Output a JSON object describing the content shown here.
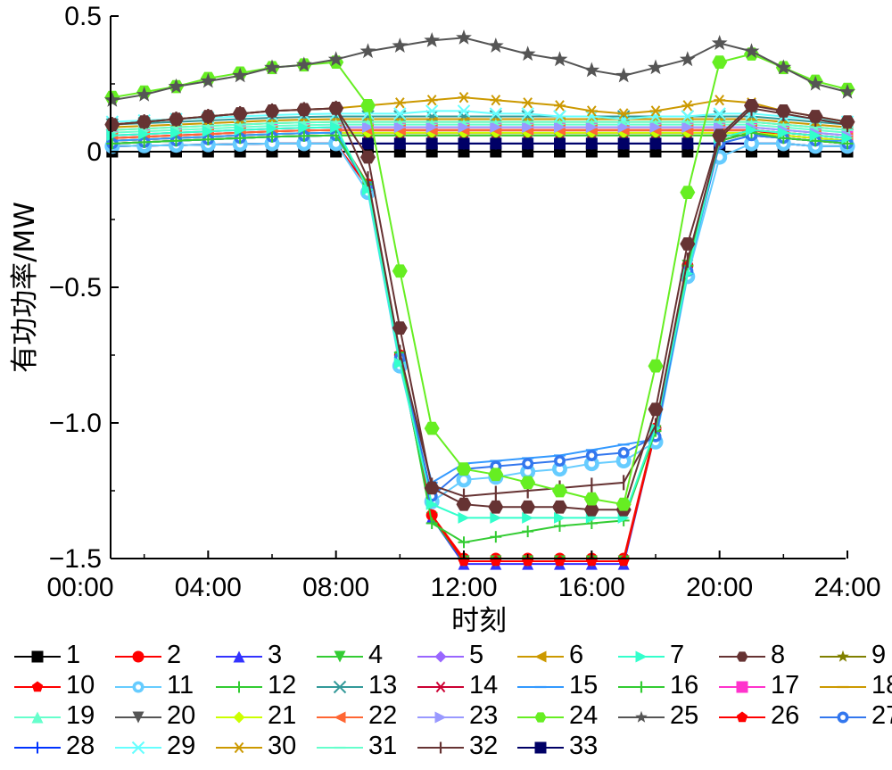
{
  "chart_data": {
    "type": "line",
    "title": "",
    "xlabel": "时刻",
    "ylabel": "有功功率/MW",
    "x_ticks": [
      "00:00",
      "04:00",
      "08:00",
      "12:00",
      "16:00",
      "20:00",
      "24:00"
    ],
    "y_ticks": [
      "0.5",
      "0",
      "−0.5",
      "−1.0",
      "−1.5"
    ],
    "xlim": [
      0,
      24
    ],
    "ylim": [
      -1.5,
      0.5
    ],
    "grid": false,
    "legend_position": "bottom",
    "x": [
      1,
      2,
      3,
      4,
      5,
      6,
      7,
      8,
      9,
      10,
      11,
      12,
      13,
      14,
      15,
      16,
      17,
      18,
      19,
      20,
      21,
      22,
      23,
      24
    ],
    "series": [
      {
        "name": "1",
        "color": "#000000",
        "marker": "square",
        "values": [
          0,
          0,
          0,
          0,
          0,
          0,
          0,
          0,
          0,
          0,
          0,
          0,
          0,
          0,
          0,
          0,
          0,
          0,
          0,
          0,
          0,
          0,
          0,
          0
        ]
      },
      {
        "name": "2",
        "color": "#ff0000",
        "marker": "circle",
        "values": [
          0.04,
          0.045,
          0.05,
          0.055,
          0.06,
          0.065,
          0.068,
          0.07,
          -0.12,
          -0.75,
          -1.34,
          -1.5,
          -1.5,
          -1.5,
          -1.5,
          -1.5,
          -1.5,
          -1.02,
          -0.42,
          0.05,
          0.08,
          0.06,
          0.05,
          0.04
        ]
      },
      {
        "name": "3",
        "color": "#3333ff",
        "marker": "triangle-up",
        "values": [
          0.03,
          0.035,
          0.04,
          0.045,
          0.05,
          0.055,
          0.058,
          0.06,
          -0.13,
          -0.76,
          -1.35,
          -1.52,
          -1.52,
          -1.52,
          -1.52,
          -1.52,
          -1.52,
          -1.03,
          -0.43,
          0.04,
          0.07,
          0.05,
          0.04,
          0.03
        ]
      },
      {
        "name": "4",
        "color": "#33cc33",
        "marker": "triangle-down",
        "values": [
          0.03,
          0.035,
          0.04,
          0.045,
          0.05,
          0.055,
          0.058,
          0.06,
          -0.13,
          -0.76,
          -1.35,
          -1.51,
          -1.51,
          -1.51,
          -1.51,
          -1.51,
          -1.51,
          -1.03,
          -0.42,
          0.04,
          0.07,
          0.05,
          0.04,
          0.03
        ]
      },
      {
        "name": "5",
        "color": "#9966ff",
        "marker": "diamond",
        "values": [
          0.05,
          0.055,
          0.06,
          0.065,
          0.07,
          0.075,
          0.078,
          0.08,
          0.08,
          0.08,
          0.08,
          0.08,
          0.08,
          0.08,
          0.08,
          0.08,
          0.08,
          0.08,
          0.08,
          0.08,
          0.08,
          0.07,
          0.06,
          0.05
        ]
      },
      {
        "name": "6",
        "color": "#cc9900",
        "marker": "triangle-left",
        "values": [
          0.08,
          0.085,
          0.09,
          0.095,
          0.1,
          0.105,
          0.108,
          0.11,
          0.11,
          0.11,
          0.11,
          0.11,
          0.11,
          0.11,
          0.11,
          0.11,
          0.11,
          0.11,
          0.11,
          0.11,
          0.11,
          0.1,
          0.09,
          0.08
        ]
      },
      {
        "name": "7",
        "color": "#33ffcc",
        "marker": "triangle-right",
        "values": [
          0.06,
          0.065,
          0.07,
          0.075,
          0.08,
          0.085,
          0.088,
          0.09,
          -0.14,
          -0.78,
          -1.3,
          -1.35,
          -1.35,
          -1.35,
          -1.35,
          -1.35,
          -1.35,
          -1.02,
          -0.45,
          0.05,
          0.08,
          0.07,
          0.06,
          0.05
        ]
      },
      {
        "name": "8",
        "color": "#663333",
        "marker": "hexagon",
        "values": [
          0.1,
          0.11,
          0.12,
          0.13,
          0.14,
          0.15,
          0.155,
          0.16,
          -0.02,
          -0.65,
          -1.24,
          -1.3,
          -1.31,
          -1.31,
          -1.31,
          -1.32,
          -1.32,
          -0.95,
          -0.34,
          0.06,
          0.17,
          0.15,
          0.13,
          0.11
        ]
      },
      {
        "name": "9",
        "color": "#808000",
        "marker": "star",
        "values": [
          0.03,
          0.035,
          0.04,
          0.045,
          0.05,
          0.055,
          0.058,
          0.06,
          0.06,
          0.06,
          0.06,
          0.06,
          0.06,
          0.06,
          0.06,
          0.06,
          0.06,
          0.06,
          0.06,
          0.06,
          0.06,
          0.05,
          0.04,
          0.03
        ]
      },
      {
        "name": "10",
        "color": "#ff0000",
        "marker": "pentagon",
        "values": [
          0.05,
          0.055,
          0.06,
          0.065,
          0.07,
          0.075,
          0.078,
          0.08,
          0.08,
          0.08,
          0.08,
          0.08,
          0.08,
          0.08,
          0.08,
          0.08,
          0.08,
          0.08,
          0.08,
          0.08,
          0.08,
          0.07,
          0.06,
          0.05
        ]
      },
      {
        "name": "11",
        "color": "#66ccff",
        "marker": "circle-dot",
        "values": [
          0.02,
          0.022,
          0.024,
          0.026,
          0.028,
          0.03,
          0.03,
          0.03,
          -0.15,
          -0.79,
          -1.29,
          -1.21,
          -1.2,
          -1.18,
          -1.17,
          -1.15,
          -1.14,
          -1.07,
          -0.46,
          -0.02,
          0.03,
          0.03,
          0.02,
          0.02
        ]
      },
      {
        "name": "12",
        "color": "#33cc33",
        "marker": "plus",
        "values": [
          0.03,
          0.035,
          0.04,
          0.045,
          0.05,
          0.055,
          0.058,
          0.06,
          -0.12,
          -0.74,
          -1.37,
          -1.44,
          -1.42,
          -1.4,
          -1.38,
          -1.37,
          -1.36,
          -1.03,
          -0.42,
          0.04,
          0.07,
          0.05,
          0.04,
          0.03
        ]
      },
      {
        "name": "13",
        "color": "#339999",
        "marker": "x",
        "values": [
          0.1,
          0.105,
          0.11,
          0.115,
          0.12,
          0.125,
          0.128,
          0.13,
          0.13,
          0.13,
          0.13,
          0.13,
          0.13,
          0.13,
          0.13,
          0.13,
          0.13,
          0.13,
          0.13,
          0.13,
          0.13,
          0.12,
          0.11,
          0.1
        ]
      },
      {
        "name": "14",
        "color": "#cc0033",
        "marker": "asterisk",
        "values": [
          0.04,
          0.045,
          0.05,
          0.055,
          0.06,
          0.065,
          0.068,
          0.07,
          0.07,
          0.07,
          0.07,
          0.07,
          0.07,
          0.07,
          0.07,
          0.07,
          0.07,
          0.07,
          0.07,
          0.07,
          0.07,
          0.06,
          0.05,
          0.04
        ]
      },
      {
        "name": "15",
        "color": "#3399ff",
        "marker": "hline",
        "values": [
          0.04,
          0.045,
          0.05,
          0.055,
          0.06,
          0.065,
          0.068,
          0.07,
          -0.13,
          -0.77,
          -1.22,
          -1.15,
          -1.14,
          -1.13,
          -1.12,
          -1.1,
          -1.08,
          -1.06,
          -0.45,
          0.03,
          0.06,
          0.05,
          0.04,
          0.04
        ]
      },
      {
        "name": "16",
        "color": "#33cc33",
        "marker": "vline",
        "values": [
          0.03,
          0.035,
          0.04,
          0.045,
          0.05,
          0.055,
          0.058,
          0.06,
          0.06,
          0.06,
          0.06,
          0.06,
          0.06,
          0.06,
          0.06,
          0.06,
          0.06,
          0.06,
          0.06,
          0.06,
          0.06,
          0.05,
          0.04,
          0.03
        ]
      },
      {
        "name": "17",
        "color": "#ff33cc",
        "marker": "square",
        "values": [
          0.06,
          0.065,
          0.07,
          0.075,
          0.08,
          0.085,
          0.088,
          0.09,
          0.09,
          0.09,
          0.09,
          0.09,
          0.09,
          0.09,
          0.09,
          0.09,
          0.09,
          0.09,
          0.09,
          0.09,
          0.09,
          0.08,
          0.07,
          0.06
        ]
      },
      {
        "name": "18",
        "color": "#cc9900",
        "marker": "hline",
        "values": [
          0.09,
          0.095,
          0.1,
          0.105,
          0.11,
          0.115,
          0.118,
          0.12,
          0.12,
          0.12,
          0.12,
          0.12,
          0.12,
          0.12,
          0.12,
          0.12,
          0.12,
          0.12,
          0.12,
          0.12,
          0.12,
          0.11,
          0.1,
          0.09
        ]
      },
      {
        "name": "19",
        "color": "#66ffcc",
        "marker": "triangle-up",
        "values": [
          0.07,
          0.075,
          0.08,
          0.085,
          0.09,
          0.095,
          0.098,
          0.1,
          0.1,
          0.1,
          0.1,
          0.1,
          0.1,
          0.1,
          0.1,
          0.1,
          0.1,
          0.1,
          0.1,
          0.1,
          0.1,
          0.09,
          0.08,
          0.07
        ]
      },
      {
        "name": "20",
        "color": "#555555",
        "marker": "triangle-down",
        "values": [
          0.02,
          0.022,
          0.024,
          0.026,
          0.028,
          0.03,
          0.03,
          0.03,
          0.03,
          0.03,
          0.03,
          0.03,
          0.03,
          0.03,
          0.03,
          0.03,
          0.03,
          0.03,
          0.03,
          0.03,
          0.03,
          0.03,
          0.02,
          0.02
        ]
      },
      {
        "name": "21",
        "color": "#ccff00",
        "marker": "diamond",
        "values": [
          0.04,
          0.045,
          0.05,
          0.055,
          0.06,
          0.065,
          0.068,
          0.07,
          0.07,
          0.07,
          0.07,
          0.07,
          0.07,
          0.07,
          0.07,
          0.07,
          0.07,
          0.07,
          0.07,
          0.07,
          0.07,
          0.06,
          0.05,
          0.04
        ]
      },
      {
        "name": "22",
        "color": "#ff6633",
        "marker": "triangle-left",
        "values": [
          0.05,
          0.055,
          0.06,
          0.065,
          0.07,
          0.075,
          0.078,
          0.08,
          0.08,
          0.08,
          0.08,
          0.08,
          0.08,
          0.08,
          0.08,
          0.08,
          0.08,
          0.08,
          0.08,
          0.08,
          0.08,
          0.07,
          0.06,
          0.05
        ]
      },
      {
        "name": "23",
        "color": "#9999ff",
        "marker": "triangle-right",
        "values": [
          0.06,
          0.065,
          0.07,
          0.075,
          0.08,
          0.085,
          0.088,
          0.09,
          0.09,
          0.09,
          0.09,
          0.09,
          0.09,
          0.09,
          0.09,
          0.09,
          0.09,
          0.09,
          0.09,
          0.09,
          0.09,
          0.08,
          0.07,
          0.06
        ]
      },
      {
        "name": "24",
        "color": "#66ee22",
        "marker": "hexagon",
        "values": [
          0.2,
          0.22,
          0.24,
          0.27,
          0.29,
          0.31,
          0.32,
          0.33,
          0.17,
          -0.44,
          -1.02,
          -1.17,
          -1.19,
          -1.22,
          -1.25,
          -1.28,
          -1.3,
          -0.79,
          -0.15,
          0.33,
          0.36,
          0.31,
          0.26,
          0.23
        ]
      },
      {
        "name": "25",
        "color": "#555555",
        "marker": "star",
        "values": [
          0.19,
          0.21,
          0.24,
          0.26,
          0.28,
          0.31,
          0.32,
          0.34,
          0.37,
          0.39,
          0.41,
          0.42,
          0.39,
          0.36,
          0.34,
          0.3,
          0.28,
          0.31,
          0.34,
          0.4,
          0.37,
          0.31,
          0.25,
          0.22
        ]
      },
      {
        "name": "26",
        "color": "#ff0000",
        "marker": "pentagon",
        "values": [
          0.02,
          0.022,
          0.024,
          0.026,
          0.028,
          0.03,
          0.03,
          0.03,
          -0.13,
          -0.76,
          -1.34,
          -1.51,
          -1.51,
          -1.51,
          -1.51,
          -1.51,
          -1.51,
          -1.03,
          -0.42,
          0.04,
          0.07,
          0.05,
          0.04,
          0.03
        ]
      },
      {
        "name": "27",
        "color": "#3377ee",
        "marker": "circle-dot",
        "values": [
          0.03,
          0.035,
          0.04,
          0.045,
          0.05,
          0.055,
          0.058,
          0.06,
          -0.13,
          -0.76,
          -1.27,
          -1.17,
          -1.16,
          -1.15,
          -1.14,
          -1.12,
          -1.11,
          -1.05,
          -0.44,
          0.03,
          0.06,
          0.05,
          0.04,
          0.03
        ]
      },
      {
        "name": "28",
        "color": "#0033ff",
        "marker": "plus",
        "values": [
          0.02,
          0.022,
          0.024,
          0.026,
          0.028,
          0.03,
          0.03,
          0.03,
          0.03,
          0.03,
          0.03,
          0.03,
          0.03,
          0.03,
          0.03,
          0.03,
          0.03,
          0.03,
          0.03,
          0.03,
          0.03,
          0.03,
          0.02,
          0.02
        ]
      },
      {
        "name": "29",
        "color": "#66ffff",
        "marker": "x",
        "values": [
          0.11,
          0.115,
          0.12,
          0.125,
          0.13,
          0.135,
          0.138,
          0.14,
          0.14,
          0.14,
          0.15,
          0.15,
          0.14,
          0.14,
          0.13,
          0.13,
          0.12,
          0.13,
          0.13,
          0.14,
          0.14,
          0.13,
          0.12,
          0.11
        ]
      },
      {
        "name": "30",
        "color": "#cc9900",
        "marker": "asterisk",
        "values": [
          0.1,
          0.11,
          0.12,
          0.13,
          0.14,
          0.15,
          0.155,
          0.16,
          0.17,
          0.18,
          0.19,
          0.2,
          0.19,
          0.18,
          0.17,
          0.15,
          0.14,
          0.15,
          0.17,
          0.19,
          0.18,
          0.15,
          0.13,
          0.11
        ]
      },
      {
        "name": "31",
        "color": "#66ffcc",
        "marker": "hline",
        "values": [
          0.08,
          0.085,
          0.09,
          0.095,
          0.1,
          0.105,
          0.108,
          0.11,
          0.11,
          0.11,
          0.11,
          0.11,
          0.11,
          0.11,
          0.11,
          0.11,
          0.11,
          0.11,
          0.11,
          0.11,
          0.11,
          0.1,
          0.09,
          0.08
        ]
      },
      {
        "name": "32",
        "color": "#663333",
        "marker": "vline",
        "values": [
          0.1,
          0.11,
          0.12,
          0.13,
          0.14,
          0.15,
          0.155,
          0.16,
          -0.1,
          -0.74,
          -1.23,
          -1.27,
          -1.26,
          -1.25,
          -1.24,
          -1.23,
          -1.22,
          -1.01,
          -0.4,
          0.05,
          0.16,
          0.14,
          0.12,
          0.1
        ]
      },
      {
        "name": "33",
        "color": "#000066",
        "marker": "square",
        "values": [
          0.02,
          0.022,
          0.024,
          0.026,
          0.028,
          0.03,
          0.03,
          0.03,
          0.03,
          0.03,
          0.03,
          0.03,
          0.03,
          0.03,
          0.03,
          0.03,
          0.03,
          0.03,
          0.03,
          0.03,
          0.03,
          0.03,
          0.02,
          0.02
        ]
      }
    ]
  }
}
